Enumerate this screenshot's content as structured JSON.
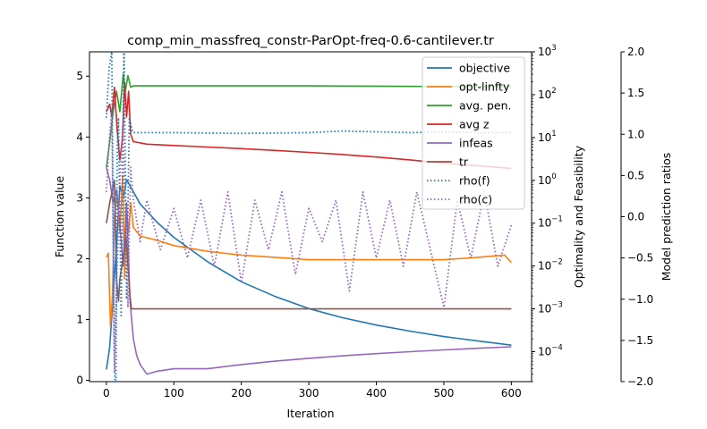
{
  "chart_data": {
    "type": "line",
    "title": "comp_min_massfreq_constr-ParOpt-freq-0.6-cantilever.tr",
    "xlabel": "Iteration",
    "ylabel_left": "Function value",
    "ylabel_right1": "Optimality and Feasibility",
    "ylabel_right2": "Model prediction ratios",
    "xlim": [
      -25,
      630
    ],
    "ylim_left": [
      -0.02,
      5.4
    ],
    "ylim_right1_log": [
      2e-05,
      1000
    ],
    "ylim_right2": [
      -2.0,
      2.0
    ],
    "x_ticks": [
      0,
      100,
      200,
      300,
      400,
      500,
      600
    ],
    "x_tick_labels": [
      "0",
      "100",
      "200",
      "300",
      "400",
      "500",
      "600"
    ],
    "y_left_ticks": [
      0,
      1,
      2,
      3,
      4,
      5
    ],
    "y_left_tick_labels": [
      "0",
      "1",
      "2",
      "3",
      "4",
      "5"
    ],
    "y_right1_ticks": [
      0.0001,
      0.001,
      0.01,
      0.1,
      1,
      10,
      100,
      1000
    ],
    "y_right1_tick_labels": [
      {
        "base": "10",
        "exp": "−4"
      },
      {
        "base": "10",
        "exp": "−3"
      },
      {
        "base": "10",
        "exp": "−2"
      },
      {
        "base": "10",
        "exp": "−1"
      },
      {
        "base": "10",
        "exp": "0"
      },
      {
        "base": "10",
        "exp": "1"
      },
      {
        "base": "10",
        "exp": "2"
      },
      {
        "base": "10",
        "exp": "3"
      }
    ],
    "y_right2_ticks": [
      -2.0,
      -1.5,
      -1.0,
      -0.5,
      0.0,
      0.5,
      1.0,
      1.5,
      2.0
    ],
    "y_right2_tick_labels": [
      "−2.0",
      "−1.5",
      "−1.0",
      "−0.5",
      "0.0",
      "0.5",
      "1.0",
      "1.5",
      "2.0"
    ],
    "legend_position": "top-right",
    "series": [
      {
        "name": "objective",
        "axis": "left",
        "color": "#1f77b4",
        "style": "solid",
        "x": [
          0,
          5,
          10,
          15,
          20,
          25,
          30,
          40,
          50,
          75,
          100,
          150,
          200,
          250,
          300,
          350,
          400,
          450,
          500,
          550,
          600
        ],
        "y": [
          0.18,
          0.55,
          1.4,
          2.2,
          3.2,
          3.0,
          3.3,
          3.1,
          2.9,
          2.6,
          2.35,
          1.95,
          1.62,
          1.38,
          1.18,
          1.03,
          0.91,
          0.81,
          0.72,
          0.65,
          0.58
        ]
      },
      {
        "name": "opt-linfty",
        "axis": "right1",
        "color": "#ff7f0e",
        "style": "solid",
        "x": [
          0,
          3,
          6,
          9,
          12,
          16,
          20,
          24,
          27,
          30,
          33,
          36,
          40,
          50,
          75,
          100,
          150,
          200,
          250,
          300,
          350,
          400,
          450,
          500,
          550,
          590,
          600
        ],
        "y": [
          0.016,
          0.02,
          0.0004,
          0.002,
          0.15,
          0.5,
          0.06,
          1.3,
          0.005,
          0.2,
          0.06,
          0.3,
          0.08,
          0.05,
          0.04,
          0.03,
          0.022,
          0.018,
          0.016,
          0.014,
          0.014,
          0.014,
          0.014,
          0.014,
          0.016,
          0.018,
          0.012
        ]
      },
      {
        "name": "avg. pen.",
        "axis": "right1",
        "color": "#2ca02c",
        "style": "solid",
        "x": [
          0,
          5,
          10,
          15,
          20,
          25,
          28,
          32,
          36,
          40,
          50,
          100,
          200,
          300,
          400,
          500,
          600
        ],
        "y": [
          2.0,
          8.0,
          40,
          120,
          40,
          300,
          120,
          280,
          150,
          160,
          160,
          160,
          160,
          160,
          158,
          155,
          155
        ]
      },
      {
        "name": "avg z",
        "axis": "right1",
        "color": "#d62728",
        "style": "solid",
        "x": [
          0,
          5,
          8,
          12,
          16,
          20,
          24,
          27,
          30,
          33,
          36,
          40,
          60,
          100,
          150,
          200,
          250,
          300,
          350,
          400,
          450,
          500,
          550,
          600
        ],
        "y": [
          40,
          60,
          30,
          150,
          15,
          3,
          10,
          200,
          30,
          120,
          12,
          8,
          7,
          6.5,
          6.0,
          5.5,
          5.0,
          4.5,
          4.0,
          3.5,
          3.0,
          2.5,
          2.2,
          1.9
        ]
      },
      {
        "name": "infeas",
        "axis": "right1",
        "color": "#9467bd",
        "style": "solid",
        "x": [
          0,
          5,
          10,
          15,
          20,
          25,
          30,
          35,
          40,
          45,
          50,
          60,
          75,
          100,
          150,
          200,
          250,
          300,
          350,
          400,
          450,
          500,
          550,
          600
        ],
        "y": [
          2.0,
          1.0,
          0.3,
          0.6,
          0.1,
          0.01,
          0.3,
          0.0015,
          0.0002,
          8e-05,
          5e-05,
          3e-05,
          3.5e-05,
          4e-05,
          4e-05,
          5e-05,
          6e-05,
          7e-05,
          8e-05,
          9e-05,
          0.0001,
          0.00011,
          0.00012,
          0.00013
        ]
      },
      {
        "name": "tr",
        "axis": "right1",
        "color": "#8c564b",
        "style": "solid",
        "x": [
          0,
          5,
          8,
          12,
          15,
          18,
          20,
          23,
          26,
          29,
          32,
          35,
          37,
          100,
          200,
          300,
          400,
          500,
          600
        ],
        "y": [
          0.1,
          0.3,
          0.5,
          1.0,
          0.005,
          0.0015,
          0.005,
          0.01,
          0.02,
          0.05,
          0.01,
          0.002,
          0.001,
          0.001,
          0.001,
          0.001,
          0.001,
          0.001,
          0.001
        ]
      },
      {
        "name": "rho(f)",
        "axis": "right2",
        "color": "#1f77b4",
        "style": "dotted",
        "x": [
          0,
          4,
          8,
          10,
          12,
          14,
          16,
          18,
          22,
          26,
          30,
          34,
          38,
          40,
          100,
          200,
          300,
          350,
          400,
          450,
          500,
          550,
          600
        ],
        "y": [
          1.2,
          1.8,
          2.0,
          0.0,
          -1.8,
          -2.2,
          0.8,
          1.2,
          -1.2,
          2.1,
          -1.0,
          1.2,
          1.05,
          1.02,
          1.02,
          1.01,
          1.02,
          1.04,
          1.03,
          1.02,
          1.03,
          1.02,
          1.02
        ]
      },
      {
        "name": "rho(c)",
        "axis": "right2",
        "color": "#9467bd",
        "style": "dotted",
        "x": [
          0,
          4,
          8,
          12,
          16,
          20,
          24,
          28,
          32,
          36,
          40,
          50,
          60,
          80,
          100,
          120,
          140,
          160,
          180,
          200,
          220,
          240,
          260,
          280,
          300,
          320,
          340,
          360,
          380,
          400,
          420,
          440,
          460,
          480,
          500,
          520,
          540,
          560,
          580,
          600
        ],
        "y": [
          0.3,
          0.9,
          1.3,
          -1.9,
          -0.6,
          0.4,
          1.1,
          0.0,
          -1.1,
          0.6,
          0.2,
          -0.3,
          0.2,
          -0.4,
          0.1,
          -0.5,
          0.2,
          -0.6,
          0.3,
          -0.8,
          0.2,
          -0.4,
          0.3,
          -0.7,
          0.1,
          -0.3,
          0.2,
          -0.9,
          0.3,
          -0.5,
          0.2,
          -0.6,
          0.3,
          -0.4,
          -1.1,
          0.2,
          -0.5,
          0.3,
          -0.6,
          -0.1
        ]
      }
    ]
  }
}
